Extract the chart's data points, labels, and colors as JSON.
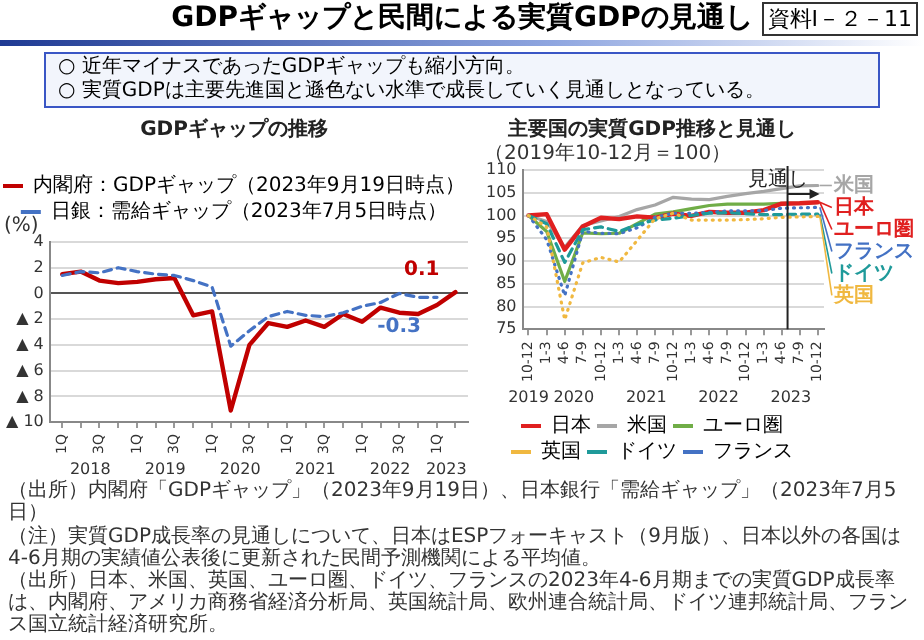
{
  "chart_data": [
    {
      "type": "other",
      "title": "GDPギャップと民間による実質GDPの見通し",
      "annotations": [
        "資料Ⅰ－２－11",
        "○ 近年マイナスであったGDPギャップも縮小方向。",
        "○ 実質GDPは主要先進国と遜色ない水準で成長していく見通しとなっている。"
      ]
    },
    {
      "type": "line",
      "title": "GDPギャップの推移",
      "ylabel": "(%)",
      "x": [
        "2018-01",
        "2018-04",
        "2018-07",
        "2018-10",
        "2019-01",
        "2019-04",
        "2019-07",
        "2019-10",
        "2020-01",
        "2020-04",
        "2020-07",
        "2020-10",
        "2021-01",
        "2021-04",
        "2021-07",
        "2021-10",
        "2022-01",
        "2022-04",
        "2022-07",
        "2022-10",
        "2023-01",
        "2023-04"
      ],
      "series": [
        {
          "name": "内閣府：GDPギャップ（2023年9月19日時点）",
          "color": "#c00000",
          "line_style": "solid",
          "values": [
            1.5,
            1.7,
            1.0,
            0.8,
            0.9,
            1.1,
            1.2,
            -1.7,
            -1.4,
            -9.1,
            -4.0,
            -2.3,
            -2.6,
            -2.1,
            -2.6,
            -1.6,
            -2.2,
            -1.1,
            -1.5,
            -1.6,
            -0.9,
            0.1
          ],
          "value_labels": [
            null,
            null,
            null,
            null,
            null,
            null,
            null,
            null,
            null,
            null,
            null,
            null,
            null,
            null,
            null,
            null,
            null,
            null,
            null,
            null,
            null,
            "0.1"
          ]
        },
        {
          "name": "日銀：需給ギャップ（2023年7月5日時点）",
          "color": "#4472c4",
          "line_style": "dashed",
          "values": [
            1.4,
            1.7,
            1.6,
            2.0,
            1.7,
            1.5,
            1.4,
            1.0,
            0.5,
            -4.1,
            -2.9,
            -1.8,
            -1.4,
            -1.7,
            -1.8,
            -1.5,
            -1.0,
            -0.7,
            0.0,
            -0.3,
            -0.3,
            null
          ],
          "value_labels": [
            null,
            null,
            null,
            null,
            null,
            null,
            null,
            null,
            null,
            null,
            null,
            null,
            null,
            null,
            null,
            null,
            null,
            null,
            null,
            null,
            "-0.3",
            null
          ]
        }
      ],
      "xlim": [
        "2017-11",
        "2023-06"
      ],
      "xticks": [
        {
          "value": "2018-01",
          "label": "1Q"
        },
        {
          "value": "2018-04",
          "label": null
        },
        {
          "value": "2018-07",
          "label": "3Q"
        },
        {
          "value": "2018-10",
          "label": null
        },
        {
          "value": "2019-01",
          "label": "1Q"
        },
        {
          "value": "2019-04",
          "label": null
        },
        {
          "value": "2019-07",
          "label": "3Q"
        },
        {
          "value": "2019-10",
          "label": null
        },
        {
          "value": "2020-01",
          "label": "1Q"
        },
        {
          "value": "2020-04",
          "label": null
        },
        {
          "value": "2020-07",
          "label": "3Q"
        },
        {
          "value": "2020-10",
          "label": null
        },
        {
          "value": "2021-01",
          "label": "1Q"
        },
        {
          "value": "2021-04",
          "label": null
        },
        {
          "value": "2021-07",
          "label": "3Q"
        },
        {
          "value": "2021-10",
          "label": null
        },
        {
          "value": "2022-01",
          "label": "1Q"
        },
        {
          "value": "2022-04",
          "label": null
        },
        {
          "value": "2022-07",
          "label": "3Q"
        },
        {
          "value": "2022-10",
          "label": null
        },
        {
          "value": "2023-01",
          "label": "1Q"
        },
        {
          "value": "2023-04",
          "label": null
        }
      ],
      "ylim": [
        -10,
        4
      ],
      "yticks": [
        {
          "value": -10,
          "label": "▲ 10"
        },
        {
          "value": -8,
          "label": "▲ 8"
        },
        {
          "value": -6,
          "label": "▲ 6"
        },
        {
          "value": -4,
          "label": "▲ 4"
        },
        {
          "value": -2,
          "label": "▲ 2"
        },
        0,
        2,
        4
      ],
      "grid": "y",
      "legend": "top",
      "marker": "none",
      "annotations": [
        "2018",
        "2019",
        "2020",
        "2021",
        "2022",
        "2023",
        "（出所）内閣府「GDPギャップ」（2023年9月19日）、日本銀行「需給ギャップ」（2023年7月5日）"
      ]
    },
    {
      "type": "line",
      "title": "主要国の実質GDP推移と見通し",
      "ylabel": "（2019年10-12月＝100）",
      "x": [
        "2019-10",
        "2020-01",
        "2020-04",
        "2020-07",
        "2020-10",
        "2021-01",
        "2021-04",
        "2021-07",
        "2021-10",
        "2022-01",
        "2022-04",
        "2022-07",
        "2022-10",
        "2023-01",
        "2023-04",
        "2023-07",
        "2023-10"
      ],
      "series": [
        {
          "name": "日本",
          "color": "#e02020",
          "line_style": "solid",
          "values": [
            100,
            100.3,
            92.5,
            97.6,
            99.5,
            99.2,
            99.8,
            99.5,
            100.4,
            99.9,
            100.8,
            100.6,
            100.6,
            101.2,
            102.6,
            102.7,
            102.9
          ]
        },
        {
          "name": "米国",
          "color": "#a6a6a6",
          "line_style": "solid",
          "values": [
            100,
            98.7,
            93.0,
            97.8,
            98.8,
            99.8,
            101.3,
            102.3,
            104.0,
            103.6,
            103.5,
            104.2,
            104.8,
            105.3,
            105.9,
            106.5,
            106.6
          ]
        },
        {
          "name": "ユーロ圏",
          "color": "#70ad47",
          "line_style": "solid",
          "values": [
            100,
            96.5,
            85.5,
            96.2,
            96.0,
            96.1,
            98.2,
            100.3,
            100.8,
            101.5,
            102.2,
            102.5,
            102.5,
            102.5,
            102.7,
            102.7,
            102.9
          ]
        },
        {
          "name": "英国",
          "color": "#f0b840",
          "line_style": "dotted",
          "values": [
            100,
            97.5,
            77.1,
            89.6,
            90.8,
            89.8,
            94.5,
            99.3,
            100.5,
            99.0,
            99.0,
            99.0,
            99.1,
            99.3,
            99.6,
            99.7,
            99.8
          ]
        },
        {
          "name": "ドイツ",
          "color": "#1f9a9a",
          "line_style": "dashed",
          "values": [
            100,
            98.2,
            89.7,
            96.9,
            97.5,
            96.5,
            98.0,
            99.0,
            99.4,
            100.0,
            100.5,
            100.6,
            100.4,
            100.2,
            100.2,
            100.3,
            100.3
          ]
        },
        {
          "name": "フランス",
          "color": "#4472c4",
          "line_style": "dotted",
          "values": [
            100,
            94.7,
            82.4,
            96.5,
            96.1,
            96.0,
            97.3,
            99.6,
            100.5,
            100.5,
            100.7,
            101.0,
            101.0,
            101.1,
            101.6,
            101.7,
            101.8
          ]
        }
      ],
      "xlim": [
        "2019-09",
        "2023-11"
      ],
      "xticks": [
        {
          "value": "2019-10",
          "label": "10-12"
        },
        {
          "value": "2020-01",
          "label": "1-3"
        },
        {
          "value": "2020-04",
          "label": "4-6"
        },
        {
          "value": "2020-07",
          "label": "7-9"
        },
        {
          "value": "2020-10",
          "label": "10-12"
        },
        {
          "value": "2021-01",
          "label": "1-3"
        },
        {
          "value": "2021-04",
          "label": "4-6"
        },
        {
          "value": "2021-07",
          "label": "7-9"
        },
        {
          "value": "2021-10",
          "label": "10-12"
        },
        {
          "value": "2022-01",
          "label": "1-3"
        },
        {
          "value": "2022-04",
          "label": "4-6"
        },
        {
          "value": "2022-07",
          "label": "7-9"
        },
        {
          "value": "2022-10",
          "label": "10-12"
        },
        {
          "value": "2023-01",
          "label": "1-3"
        },
        {
          "value": "2023-04",
          "label": "4-6"
        },
        {
          "value": "2023-07",
          "label": "7-9"
        },
        {
          "value": "2023-10",
          "label": "10-12"
        }
      ],
      "ylim": [
        75,
        110
      ],
      "yticks": [
        75,
        80,
        85,
        90,
        95,
        100,
        105,
        110
      ],
      "grid": "y",
      "legend": "bottom",
      "marker": "none",
      "ref_lines": [
        {
          "axis": "x",
          "value": "2023-05",
          "label": "見通し"
        }
      ],
      "annotations": [
        "2019",
        "2020",
        "2021",
        "2022",
        "2023",
        {
          "text": "米国",
          "x": "2023-10",
          "y": 106.6
        },
        {
          "text": "日本",
          "x": "2023-10",
          "y": 102.9
        },
        {
          "text": "ユーロ圏",
          "x": "2023-10",
          "y": 102.9
        },
        {
          "text": "フランス",
          "x": "2023-10",
          "y": 101.8
        },
        {
          "text": "ドイツ",
          "x": "2023-10",
          "y": 100.3
        },
        {
          "text": "英国",
          "x": "2023-10",
          "y": 99.8
        },
        "（注）実質GDP成長率の見通しについて、日本はESPフォーキャスト（9月版）、日本以外の各国は4-6月期の実績値公表後に更新された民間予測機関による平均値。",
        "（出所）日本、米国、英国、ユーロ圏、ドイツ、フランスの2023年4-6月期までの実質GDP成長率は、内閣府、アメリカ商務省経済分析局、英国統計局、欧州連合統計局、ドイツ連邦統計局、フランス国立統計経済研究所。"
      ]
    }
  ]
}
